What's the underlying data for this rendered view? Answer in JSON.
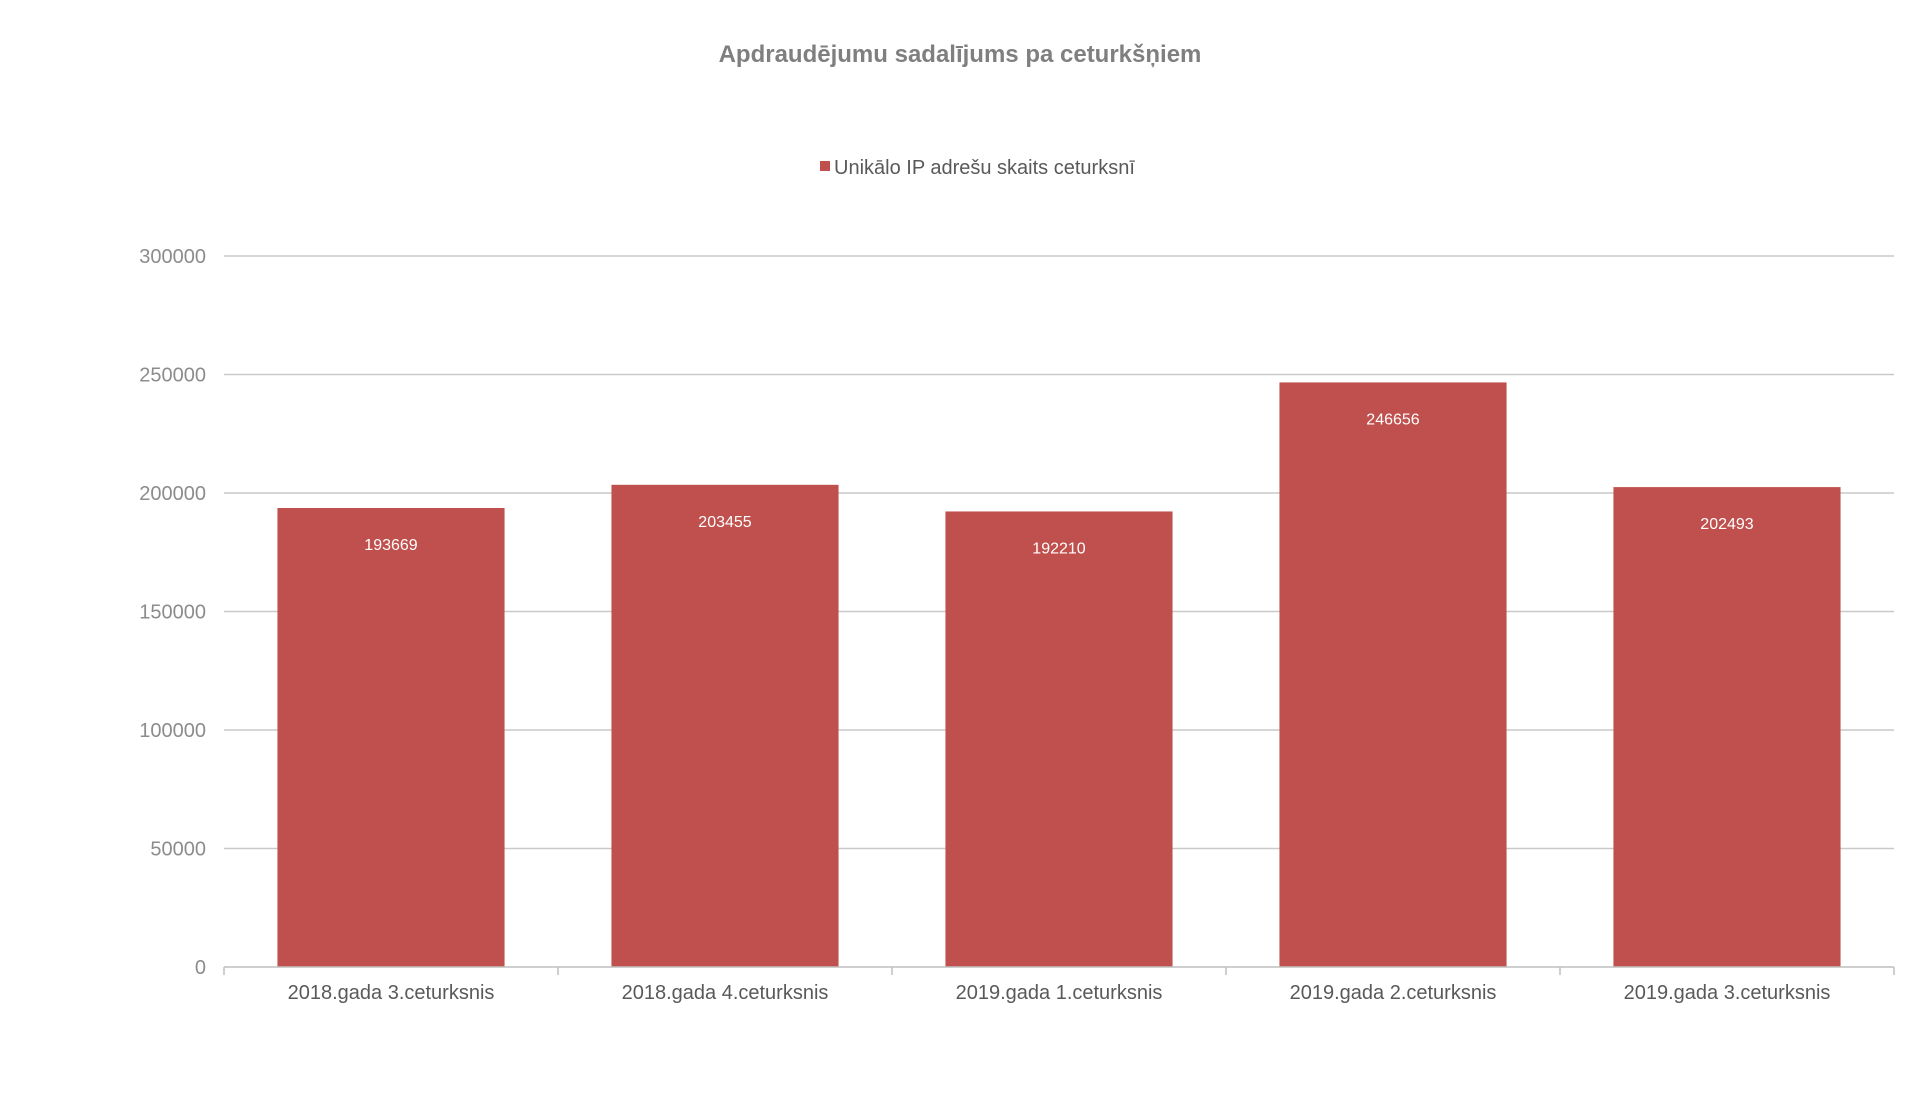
{
  "chart_data": {
    "type": "bar",
    "title": "Apdraudējumu sadalījums pa ceturkšņiem",
    "xlabel": "",
    "ylabel": "",
    "categories": [
      "2018.gada 3.ceturksnis",
      "2018.gada 4.ceturksnis",
      "2019.gada 1.ceturksnis",
      "2019.gada 2.ceturksnis",
      "2019.gada 3.ceturksnis"
    ],
    "series": [
      {
        "name": "Unikālo IP adrešu skaits ceturksnī",
        "color": "#c0504d",
        "values": [
          193669,
          203455,
          192210,
          246656,
          202493
        ]
      }
    ],
    "ylim": [
      0,
      300000
    ],
    "yticks": [
      0,
      50000,
      100000,
      150000,
      200000,
      250000,
      300000
    ],
    "grid": true,
    "legend_position": "top",
    "data_labels": true
  }
}
